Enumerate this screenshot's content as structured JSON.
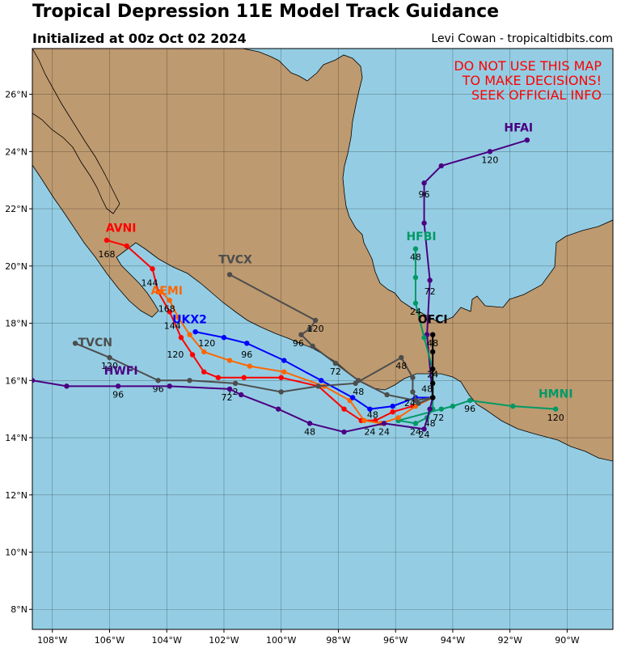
{
  "header": {
    "title": "Tropical Depression 11E Model Track Guidance",
    "subtitle": "Initialized at 00z Oct 02 2024",
    "credit": "Levi Cowan - tropicaltidbits.com"
  },
  "warning": [
    "DO NOT USE THIS MAP",
    "TO MAKE DECISIONS!",
    "SEEK OFFICIAL INFO"
  ],
  "colors": {
    "ocean": "#94cde3",
    "land": "#be9a70",
    "warning": "#ff0000"
  },
  "axes": {
    "lon_range": [
      -108.7,
      -88.4
    ],
    "lat_range": [
      7.3,
      27.6
    ],
    "lon_ticks": [
      -108,
      -106,
      -104,
      -102,
      -100,
      -98,
      -96,
      -94,
      -92,
      -90
    ],
    "lon_labels": [
      "108°W",
      "106°W",
      "104°W",
      "102°W",
      "100°W",
      "98°W",
      "96°W",
      "94°W",
      "92°W",
      "90°W"
    ],
    "lat_ticks": [
      8,
      10,
      12,
      14,
      16,
      18,
      20,
      22,
      24,
      26
    ],
    "lat_labels": [
      "8°N",
      "10°N",
      "12°N",
      "14°N",
      "16°N",
      "18°N",
      "20°N",
      "22°N",
      "24°N",
      "26°N"
    ]
  },
  "tracks": [
    {
      "name": "HFAI",
      "color": "#4b0082",
      "label_pos": [
        -91.7,
        24.7
      ],
      "points": [
        [
          -94.7,
          15.4
        ],
        [
          -94.9,
          17.6
        ],
        [
          -94.8,
          19.5
        ],
        [
          -95.0,
          21.5
        ],
        [
          -95.0,
          22.9
        ],
        [
          -94.4,
          23.5
        ],
        [
          -92.7,
          24.0
        ],
        [
          -91.4,
          24.4
        ]
      ],
      "hour_labels": [
        {
          "t": "72",
          "at": [
            -94.8,
            19.0
          ]
        },
        {
          "t": "96",
          "at": [
            -95.0,
            22.4
          ]
        },
        {
          "t": "120",
          "at": [
            -92.7,
            23.6
          ]
        }
      ]
    },
    {
      "name": "HFBI",
      "color": "#009966",
      "label_pos": [
        -95.1,
        20.9
      ],
      "points": [
        [
          -94.7,
          15.4
        ],
        [
          -94.7,
          16.4
        ],
        [
          -95.0,
          17.5
        ],
        [
          -95.3,
          18.7
        ],
        [
          -95.3,
          19.6
        ],
        [
          -95.3,
          20.6
        ]
      ],
      "hour_labels": [
        {
          "t": "24",
          "at": [
            -95.3,
            18.3
          ]
        },
        {
          "t": "48",
          "at": [
            -95.3,
            20.2
          ]
        }
      ]
    },
    {
      "name": "HMNI",
      "color": "#009966",
      "label_pos": [
        -90.4,
        15.4
      ],
      "points": [
        [
          -94.7,
          15.4
        ],
        [
          -94.7,
          15.0
        ],
        [
          -94.9,
          14.7
        ],
        [
          -95.3,
          14.5
        ],
        [
          -95.9,
          14.6
        ],
        [
          -94.4,
          15.0
        ],
        [
          -94.0,
          15.1
        ],
        [
          -93.4,
          15.3
        ],
        [
          -91.9,
          15.1
        ],
        [
          -90.4,
          15.0
        ]
      ],
      "hour_labels": [
        {
          "t": "24",
          "at": [
            -95.3,
            14.1
          ]
        },
        {
          "t": "48",
          "at": [
            -94.8,
            14.4
          ]
        },
        {
          "t": "72",
          "at": [
            -94.5,
            14.6
          ]
        },
        {
          "t": "96",
          "at": [
            -93.4,
            14.9
          ]
        },
        {
          "t": "120",
          "at": [
            -90.4,
            14.6
          ]
        }
      ]
    },
    {
      "name": "AVNI",
      "color": "#ff0000",
      "label_pos": [
        -105.6,
        21.2
      ],
      "points": [
        [
          -94.7,
          15.4
        ],
        [
          -95.4,
          15.1
        ],
        [
          -96.1,
          14.9
        ],
        [
          -96.7,
          14.6
        ],
        [
          -97.2,
          14.6
        ],
        [
          -97.8,
          15.0
        ],
        [
          -98.7,
          15.8
        ],
        [
          -100.0,
          16.1
        ],
        [
          -101.3,
          16.1
        ],
        [
          -102.2,
          16.1
        ],
        [
          -102.7,
          16.3
        ],
        [
          -103.1,
          16.9
        ],
        [
          -103.5,
          17.5
        ],
        [
          -103.9,
          18.4
        ],
        [
          -104.3,
          19.1
        ],
        [
          -104.5,
          19.9
        ],
        [
          -105.4,
          20.7
        ],
        [
          -106.1,
          20.9
        ]
      ],
      "hour_labels": [
        {
          "t": "168",
          "at": [
            -106.1,
            20.3
          ]
        },
        {
          "t": "144",
          "at": [
            -104.6,
            19.3
          ]
        }
      ]
    },
    {
      "name": "AEMI",
      "color": "#ff6600",
      "label_pos": [
        -104.0,
        19.0
      ],
      "points": [
        [
          -94.7,
          15.4
        ],
        [
          -95.3,
          15.1
        ],
        [
          -95.9,
          14.7
        ],
        [
          -96.5,
          14.5
        ],
        [
          -97.1,
          14.6
        ],
        [
          -97.6,
          15.3
        ],
        [
          -98.5,
          15.8
        ],
        [
          -99.9,
          16.3
        ],
        [
          -101.1,
          16.5
        ],
        [
          -101.8,
          16.7
        ],
        [
          -102.7,
          17.0
        ],
        [
          -103.2,
          17.6
        ],
        [
          -103.6,
          18.2
        ],
        [
          -103.9,
          18.8
        ],
        [
          -104.2,
          19.1
        ]
      ],
      "hour_labels": [
        {
          "t": "168",
          "at": [
            -104.0,
            18.4
          ]
        }
      ]
    },
    {
      "name": "UKX2",
      "color": "#0000ff",
      "label_pos": [
        -103.2,
        18.0
      ],
      "points": [
        [
          -94.7,
          15.4
        ],
        [
          -95.3,
          15.4
        ],
        [
          -96.1,
          15.1
        ],
        [
          -96.9,
          15.0
        ],
        [
          -97.5,
          15.4
        ],
        [
          -98.6,
          16.0
        ],
        [
          -99.9,
          16.7
        ],
        [
          -101.2,
          17.3
        ],
        [
          -102.0,
          17.5
        ],
        [
          -103.0,
          17.7
        ]
      ],
      "hour_labels": [
        {
          "t": "144",
          "at": [
            -103.8,
            17.8
          ]
        },
        {
          "t": "120",
          "at": [
            -102.6,
            17.2
          ]
        },
        {
          "t": "120",
          "at": [
            -103.7,
            16.8
          ]
        },
        {
          "t": "96",
          "at": [
            -101.2,
            16.8
          ]
        }
      ]
    },
    {
      "name": "TVCX",
      "color": "#4d4d4d",
      "label_pos": [
        -101.6,
        20.1
      ],
      "points": [
        [
          -94.7,
          15.4
        ],
        [
          -95.3,
          15.3
        ],
        [
          -96.3,
          15.5
        ],
        [
          -97.3,
          16.0
        ],
        [
          -98.1,
          16.6
        ],
        [
          -98.9,
          17.2
        ],
        [
          -99.3,
          17.6
        ],
        [
          -99.0,
          17.8
        ],
        [
          -98.8,
          18.1
        ],
        [
          -101.8,
          19.7
        ]
      ],
      "hour_labels": [
        {
          "t": "72",
          "at": [
            -98.1,
            16.2
          ]
        },
        {
          "t": "96",
          "at": [
            -99.4,
            17.2
          ]
        },
        {
          "t": "120",
          "at": [
            -98.8,
            17.7
          ]
        }
      ]
    },
    {
      "name": "TVCN",
      "color": "#4d4d4d",
      "label_pos": [
        -106.5,
        17.2
      ],
      "points": [
        [
          -94.7,
          15.4
        ],
        [
          -95.2,
          15.2
        ],
        [
          -95.4,
          15.6
        ],
        [
          -95.4,
          16.1
        ],
        [
          -95.8,
          16.8
        ],
        [
          -97.4,
          15.9
        ],
        [
          -98.7,
          15.8
        ],
        [
          -100.0,
          15.6
        ],
        [
          -101.6,
          15.9
        ],
        [
          -103.2,
          16.0
        ],
        [
          -104.3,
          16.0
        ],
        [
          -106.0,
          16.8
        ],
        [
          -107.2,
          17.3
        ]
      ],
      "hour_labels": [
        {
          "t": "48",
          "at": [
            -95.8,
            16.4
          ]
        },
        {
          "t": "48",
          "at": [
            -97.3,
            15.5
          ]
        },
        {
          "t": "72",
          "at": [
            -101.7,
            15.5
          ]
        },
        {
          "t": "96",
          "at": [
            -104.3,
            15.6
          ]
        },
        {
          "t": "120",
          "at": [
            -106.0,
            16.4
          ]
        }
      ]
    },
    {
      "name": "HWFI",
      "color": "#4b0082",
      "label_pos": [
        -105.6,
        16.2
      ],
      "points": [
        [
          -94.7,
          15.4
        ],
        [
          -94.8,
          15.0
        ],
        [
          -95.0,
          14.3
        ],
        [
          -96.4,
          14.5
        ],
        [
          -97.8,
          14.2
        ],
        [
          -99.0,
          14.5
        ],
        [
          -100.1,
          15.0
        ],
        [
          -101.4,
          15.5
        ],
        [
          -101.8,
          15.7
        ],
        [
          -103.9,
          15.8
        ],
        [
          -105.7,
          15.8
        ],
        [
          -107.5,
          15.8
        ],
        [
          -108.7,
          16.0
        ]
      ],
      "hour_labels": [
        {
          "t": "24",
          "at": [
            -95.0,
            14.0
          ]
        },
        {
          "t": "24",
          "at": [
            -96.9,
            14.1
          ]
        },
        {
          "t": "24",
          "at": [
            -96.4,
            14.1
          ]
        },
        {
          "t": "48",
          "at": [
            -99.0,
            14.1
          ]
        },
        {
          "t": "72",
          "at": [
            -101.9,
            15.3
          ]
        },
        {
          "t": "96",
          "at": [
            -105.7,
            15.4
          ]
        }
      ]
    },
    {
      "name": "OFCI",
      "color": "#000000",
      "label_pos": [
        -94.7,
        18.0
      ],
      "points": [
        [
          -94.7,
          15.4
        ],
        [
          -94.7,
          15.9
        ],
        [
          -94.7,
          16.4
        ],
        [
          -94.7,
          17.0
        ],
        [
          -94.7,
          17.6
        ]
      ],
      "hour_labels": [
        {
          "t": "24",
          "at": [
            -94.7,
            16.1
          ]
        },
        {
          "t": "48",
          "at": [
            -94.7,
            17.2
          ]
        },
        {
          "t": "48",
          "at": [
            -94.9,
            15.6
          ]
        },
        {
          "t": "24",
          "at": [
            -95.5,
            15.1
          ]
        },
        {
          "t": "48",
          "at": [
            -96.8,
            14.7
          ]
        }
      ]
    }
  ]
}
